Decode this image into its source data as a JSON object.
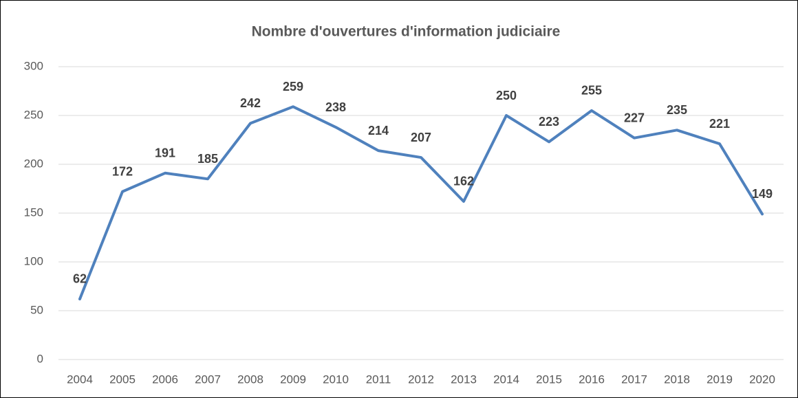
{
  "chart_data": {
    "type": "line",
    "title": "Nombre d'ouvertures d'information judiciaire",
    "categories": [
      "2004",
      "2005",
      "2006",
      "2007",
      "2008",
      "2009",
      "2010",
      "2011",
      "2012",
      "2013",
      "2014",
      "2015",
      "2016",
      "2017",
      "2018",
      "2019",
      "2020"
    ],
    "values": [
      62,
      172,
      191,
      185,
      242,
      259,
      238,
      214,
      207,
      162,
      250,
      223,
      255,
      227,
      235,
      221,
      149
    ],
    "color": "#4f81bd",
    "ylim": [
      0,
      300
    ],
    "yticks": [
      0,
      50,
      100,
      150,
      200,
      250,
      300
    ],
    "grid": true
  }
}
